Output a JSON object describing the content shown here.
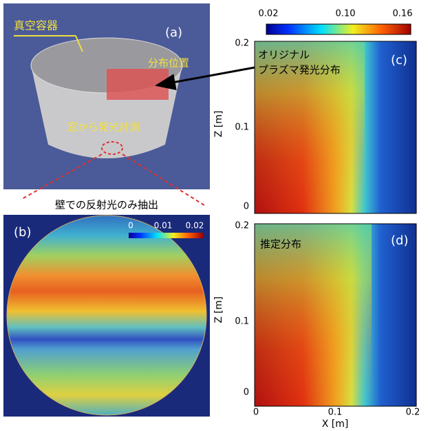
{
  "panel_a": {
    "tag": "(a)",
    "vessel": "真空容器",
    "position": "分布位置",
    "window": "窓から発光計測"
  },
  "panel_b": {
    "tag": "(b)",
    "caption": "壁での反射光のみ抽出",
    "colorbar_ticks": [
      "0",
      "0.01",
      "0.02"
    ]
  },
  "panel_c": {
    "tag": "(c)",
    "label_line1": "オリジナル",
    "label_line2": "プラズマ発光分布",
    "colorbar_ticks": [
      "0.02",
      "0.10",
      "0.16"
    ],
    "y_label": "Z [m]",
    "y_ticks": [
      "0.2",
      "0.1",
      "0"
    ]
  },
  "panel_d": {
    "tag": "(d)",
    "label": "推定分布",
    "y_label": "Z [m]",
    "y_ticks": [
      "0.2",
      "0.1",
      "0"
    ],
    "x_label": "X [m]",
    "x_ticks": [
      "0",
      "0.1",
      "0.2"
    ]
  }
}
